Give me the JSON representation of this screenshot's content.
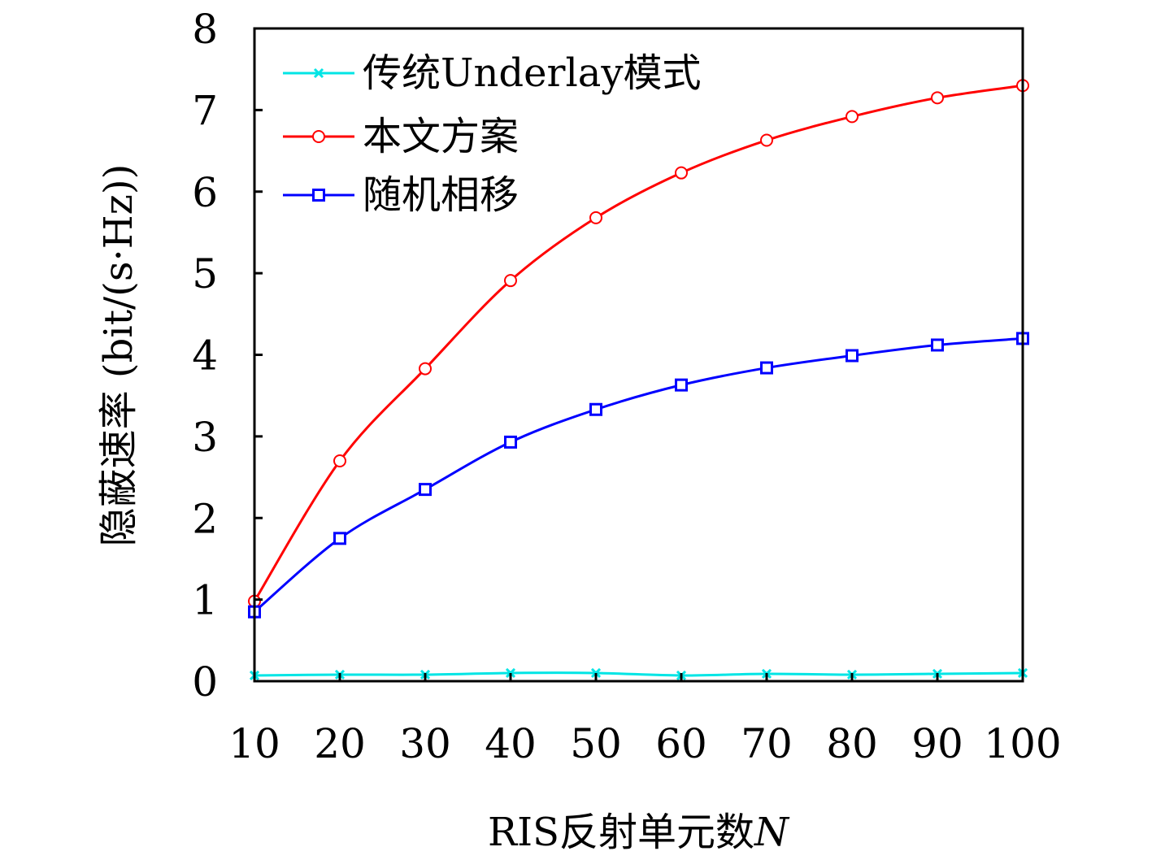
{
  "chart_data": {
    "type": "line",
    "x": [
      10,
      20,
      30,
      40,
      50,
      60,
      70,
      80,
      90,
      100
    ],
    "xlabel_prefix": "RIS反射单元数",
    "xlabel_var": "N",
    "ylabel": "隐蔽速率 (bit/(s·Hz))",
    "xlim": [
      10,
      100
    ],
    "ylim": [
      0,
      8
    ],
    "xticks": [
      "10",
      "20",
      "30",
      "40",
      "50",
      "60",
      "70",
      "80",
      "90",
      "100"
    ],
    "yticks": [
      "0",
      "1",
      "2",
      "3",
      "4",
      "5",
      "6",
      "7",
      "8"
    ],
    "grid": false,
    "legend_position": "top-left",
    "series": [
      {
        "name": "传统Underlay模式",
        "color": "#00e5e5",
        "marker": "x",
        "values": [
          0.07,
          0.08,
          0.08,
          0.1,
          0.1,
          0.07,
          0.09,
          0.08,
          0.09,
          0.1
        ]
      },
      {
        "name": "本文方案",
        "color": "#ff0000",
        "marker": "circle",
        "values": [
          0.98,
          2.7,
          3.83,
          4.91,
          5.68,
          6.23,
          6.63,
          6.92,
          7.15,
          7.3
        ]
      },
      {
        "name": "随机相移",
        "color": "#0000ff",
        "marker": "square",
        "values": [
          0.85,
          1.75,
          2.35,
          2.93,
          3.33,
          3.63,
          3.84,
          3.99,
          4.12,
          4.2
        ]
      }
    ]
  }
}
